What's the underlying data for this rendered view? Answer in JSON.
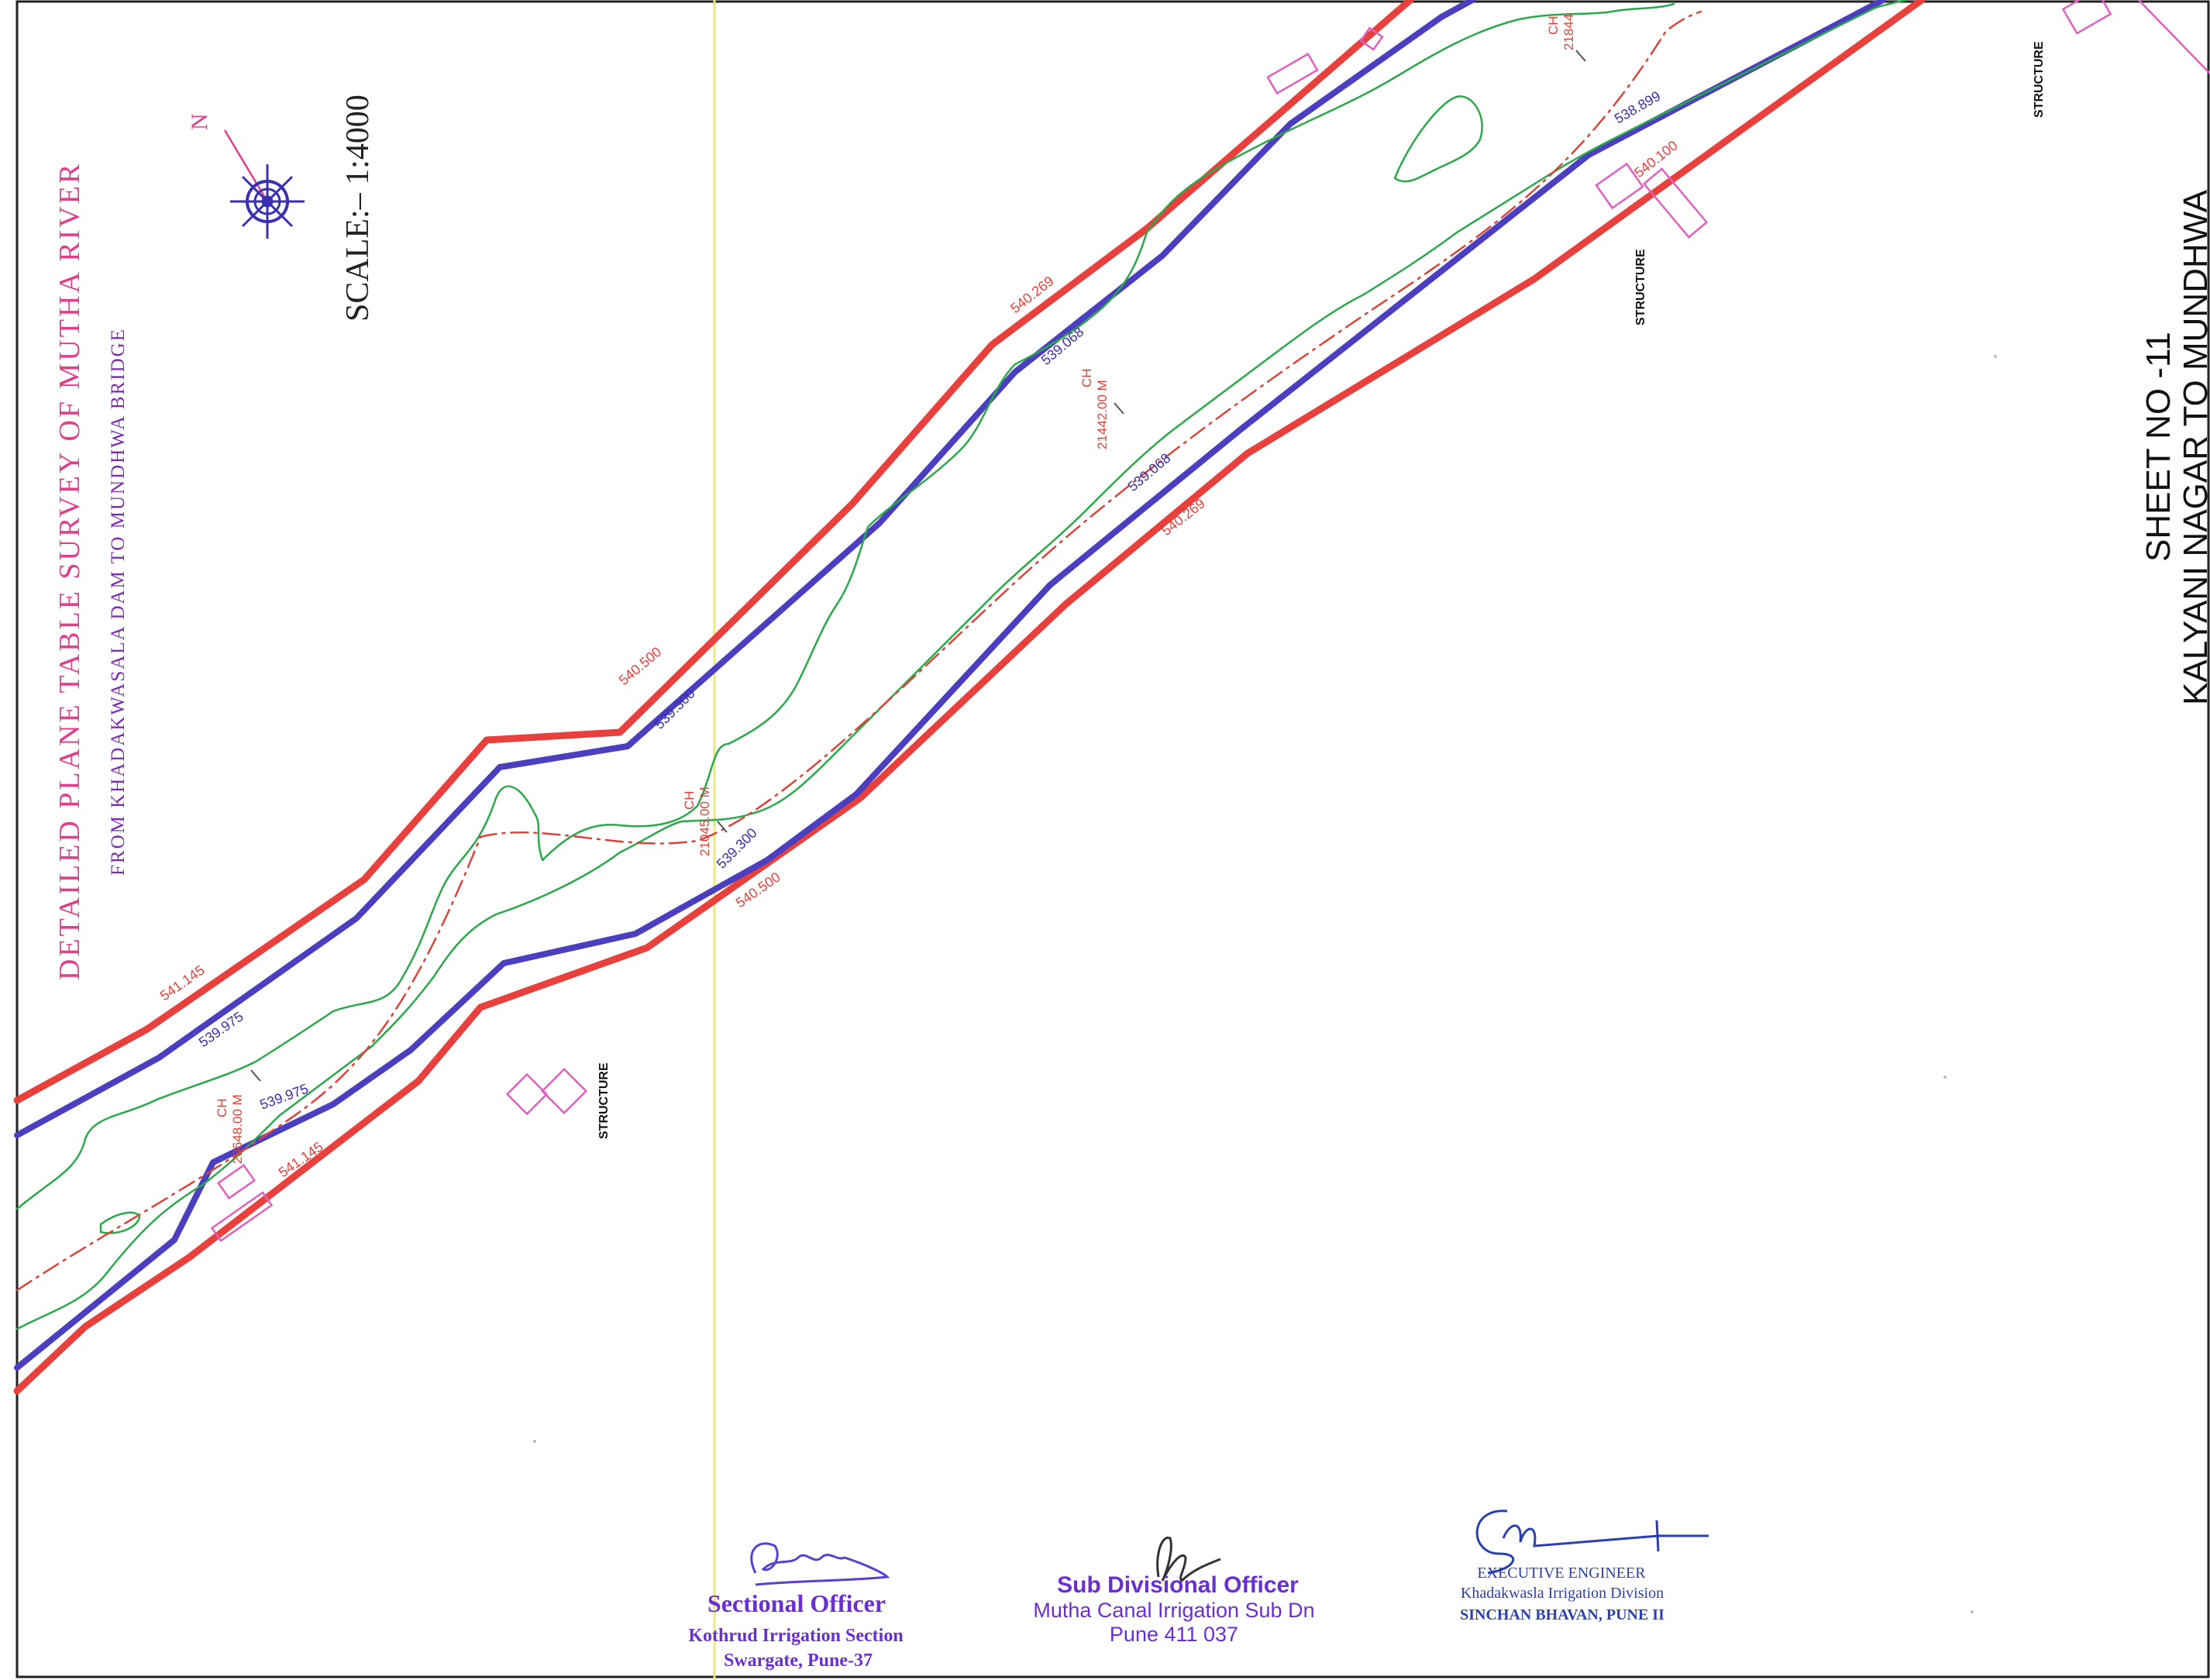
{
  "title": {
    "main": "DETAILED PLANE TABLE SURVEY OF MUTHA RIVER",
    "sub": "FROM KHADAKWASALA DAM TO MUNDHWA BRIDGE",
    "scale": "SCALE:– 1:4000",
    "north_label": "N"
  },
  "sheet": {
    "number": "SHEET NO -11",
    "stretch": "KALYANI NAGAR TO MUNDHWA"
  },
  "levels": {
    "top_red_1": "541.145",
    "top_blue_1": "539.975",
    "bottom_blue_1": "539.975",
    "bottom_red_1": "541.145",
    "top_red_2": "540.500",
    "top_blue_2": "539.300",
    "bottom_blue_2": "539.300",
    "bottom_red_2": "540.500",
    "top_red_3": "540.269",
    "top_blue_3": "539.068",
    "bottom_blue_3": "539.068",
    "bottom_red_3": "540.269",
    "bottom_blue_4": "538.899",
    "bottom_red_4": "540.100"
  },
  "chainages": [
    {
      "label": "CH",
      "value": "20648.00 M"
    },
    {
      "label": "CH",
      "value": "21045.00 M"
    },
    {
      "label": "CH",
      "value": "21442.00 M"
    },
    {
      "label": "CH",
      "value": "21844"
    }
  ],
  "structures": {
    "s1": "STRUCTURE",
    "s2": "STRUCTURE",
    "s3": "STRUCTURE"
  },
  "signatures": {
    "sectional": {
      "title": "Sectional Officer",
      "line1": "Kothrud Irrigation Section",
      "line2": "Swargate,  Pune-37"
    },
    "sub_divisional": {
      "title": "Sub Divisional Officer",
      "line1": "Mutha Canal Irrigation Sub Dn",
      "line2": "Pune 411 037"
    },
    "executive": {
      "title": "EXECUTIVE ENGINEER",
      "line1": "Khadakwasla Irrigation Division",
      "line2": "SINCHAN BHAVAN, PUNE II"
    }
  },
  "colors": {
    "bank_line": "#e8403c",
    "flood_line": "#4b3fc0",
    "water_edge": "#2aa84a",
    "centre_line": "#d9453a",
    "title": "#e0408a",
    "subtitle": "#7a2bb0",
    "structure": "#e060c0",
    "stamp": "#6a2fd0",
    "stamp_exec": "#2a3fb0",
    "frame_grid": "#f0f09a"
  }
}
